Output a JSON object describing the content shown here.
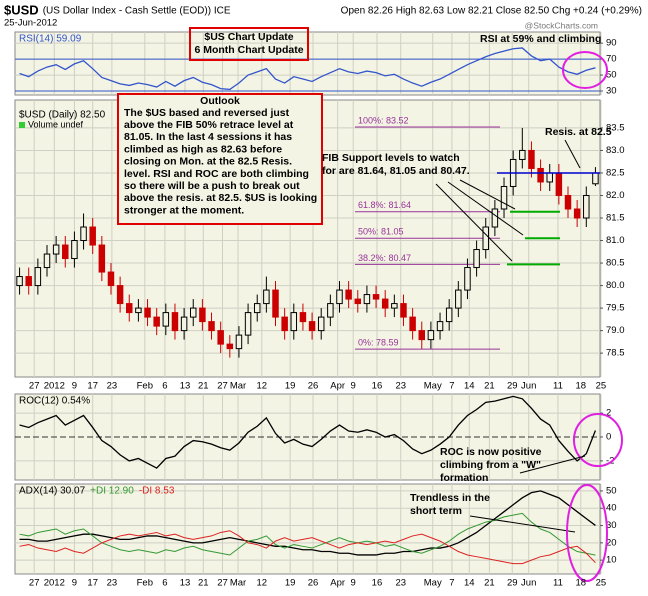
{
  "header": {
    "symbol": "$USD",
    "name": "(US Dollar Index - Cash Settle (EOD)) ICE",
    "date": "25-Jun-2012",
    "quote": "Open 82.26 High 82.63 Low 82.21 Close 82.50 Chg +0.24 (+0.29%)",
    "source": "@StockCharts.com"
  },
  "annotations": {
    "chart_update": [
      "$US Chart Update",
      "6 Month Chart Update"
    ],
    "outlook_title": "Outlook",
    "outlook": [
      "The $US based and reversed just",
      "above the FIB 50% retrace level at",
      "81.05. In the last 4 sessions it has",
      "climbed as high as 82.63 before",
      "closing on Mon. at the 82.5 Resis.",
      "level. RSI and ROC are both climbing",
      "so there will be a push to break out",
      "above the resis. at 82.5. $US is looking",
      "stronger at the moment."
    ],
    "rsi_note": "RSI at 59% and climbing",
    "resis_note": "Resis. at 82.5",
    "fib_note": [
      "FIB Support levels to watch",
      "for are 81.64, 81.05 and 80.47."
    ],
    "roc_note": [
      "ROC is now positive",
      "climbing from a \"W\"",
      "formation"
    ],
    "adx_note": [
      "Trendless in the",
      "short term"
    ]
  },
  "chart_data": [
    {
      "type": "line",
      "xlim": [
        -0.5,
        63.5
      ],
      "ylim": [
        25,
        104
      ],
      "yticks": [
        90,
        70,
        50,
        30
      ],
      "bands": [
        70,
        30
      ],
      "band_color": "#3355cc",
      "series": [
        {
          "name": "RSI(14) 59.09",
          "color": "#3355cc",
          "values": [
            52,
            48,
            55,
            60,
            63,
            57,
            64,
            68,
            58,
            47,
            43,
            39,
            37,
            40,
            38,
            35,
            42,
            36,
            43,
            47,
            41,
            38,
            33,
            32,
            40,
            50,
            54,
            58,
            45,
            40,
            48,
            45,
            42,
            48,
            53,
            58,
            54,
            52,
            55,
            53,
            49,
            51,
            45,
            40,
            36,
            41,
            45,
            51,
            57,
            63,
            68,
            73,
            77,
            80,
            83,
            84,
            74,
            68,
            70,
            60,
            54,
            51,
            56,
            59.09
          ]
        }
      ]
    },
    {
      "type": "candlestick",
      "xlim": [
        -0.5,
        63.5
      ],
      "ylim": [
        77.97,
        84.12
      ],
      "series_name": "$USD (Daily) 82.50",
      "subtitle": "Volume undef",
      "up_color": "#000000",
      "down_color": "#cc0000",
      "open": [
        80.0,
        80.2,
        80.0,
        80.4,
        80.7,
        80.9,
        80.6,
        81.0,
        81.3,
        80.9,
        80.3,
        80.0,
        79.6,
        79.4,
        79.5,
        79.3,
        79.1,
        79.4,
        79.0,
        79.3,
        79.5,
        79.2,
        79.0,
        78.7,
        78.6,
        78.9,
        79.4,
        79.6,
        79.9,
        79.3,
        79.0,
        79.4,
        79.2,
        79.0,
        79.3,
        79.6,
        79.9,
        79.7,
        79.6,
        79.8,
        79.7,
        79.5,
        79.6,
        79.3,
        79.0,
        78.8,
        79.0,
        79.2,
        79.5,
        79.9,
        80.4,
        80.8,
        81.3,
        81.7,
        82.2,
        82.8,
        83.0,
        82.6,
        82.3,
        82.5,
        82.0,
        81.7,
        81.5,
        82.26
      ],
      "high": [
        80.4,
        80.4,
        80.6,
        80.9,
        81.1,
        81.1,
        81.2,
        81.6,
        81.5,
        81.1,
        80.5,
        80.2,
        79.8,
        79.7,
        79.7,
        79.5,
        79.6,
        79.6,
        79.5,
        79.7,
        79.7,
        79.4,
        79.2,
        78.9,
        79.1,
        79.6,
        79.8,
        80.2,
        80.1,
        79.5,
        79.6,
        79.6,
        79.4,
        79.5,
        79.8,
        80.1,
        80.1,
        79.9,
        80.0,
        80.0,
        79.9,
        79.8,
        79.8,
        79.5,
        79.2,
        79.2,
        79.4,
        79.7,
        80.1,
        80.6,
        81.0,
        81.5,
        81.9,
        82.4,
        83.0,
        83.5,
        83.2,
        82.8,
        82.7,
        82.7,
        82.2,
        81.9,
        82.2,
        82.63
      ],
      "low": [
        79.8,
        79.8,
        79.8,
        80.2,
        80.5,
        80.4,
        80.4,
        80.8,
        80.7,
        80.1,
        79.8,
        79.4,
        79.2,
        79.2,
        79.1,
        78.9,
        78.9,
        78.8,
        78.8,
        79.1,
        79.0,
        78.8,
        78.5,
        78.4,
        78.4,
        78.7,
        79.2,
        79.4,
        79.1,
        78.8,
        78.8,
        79.0,
        78.8,
        78.8,
        79.1,
        79.4,
        79.5,
        79.4,
        79.4,
        79.5,
        79.3,
        79.3,
        79.1,
        78.8,
        78.6,
        78.6,
        78.8,
        79.0,
        79.3,
        79.7,
        80.2,
        80.6,
        81.1,
        81.5,
        82.0,
        82.6,
        82.4,
        82.1,
        82.1,
        81.8,
        81.5,
        81.3,
        81.3,
        82.21
      ],
      "close": [
        80.2,
        80.0,
        80.4,
        80.7,
        80.9,
        80.6,
        81.0,
        81.3,
        80.9,
        80.3,
        80.0,
        79.6,
        79.4,
        79.5,
        79.3,
        79.1,
        79.4,
        79.0,
        79.3,
        79.5,
        79.2,
        79.0,
        78.7,
        78.6,
        78.9,
        79.4,
        79.6,
        79.9,
        79.3,
        79.0,
        79.4,
        79.2,
        79.0,
        79.3,
        79.6,
        79.9,
        79.7,
        79.6,
        79.8,
        79.7,
        79.5,
        79.6,
        79.3,
        79.0,
        78.8,
        79.0,
        79.2,
        79.5,
        79.9,
        80.4,
        80.8,
        81.3,
        81.7,
        82.2,
        82.8,
        83.0,
        82.6,
        82.3,
        82.5,
        82.0,
        81.7,
        81.5,
        82.0,
        82.5
      ],
      "yticks": [
        78.5,
        {
          "value": 79,
          "label": "79.0"
        },
        79.5,
        {
          "value": 80,
          "label": "80.0"
        },
        80.5,
        {
          "value": 81,
          "label": "81.0"
        },
        81.5,
        {
          "value": 82,
          "label": "82.0"
        },
        82.5,
        {
          "value": 83,
          "label": "83.0"
        },
        83.5
      ],
      "xticks": [
        {
          "value": 1.6,
          "label": "27"
        },
        {
          "value": 3.8,
          "label": "2012"
        },
        {
          "value": 6.0,
          "label": "9"
        },
        {
          "value": 8.0,
          "label": "17"
        },
        {
          "value": 10.1,
          "label": "23"
        },
        {
          "value": 13.7,
          "label": "Feb"
        },
        {
          "value": 15.9,
          "label": "6"
        },
        {
          "value": 18.1,
          "label": "13"
        },
        {
          "value": 20.1,
          "label": "21"
        },
        {
          "value": 22.2,
          "label": "27"
        },
        {
          "value": 23.9,
          "label": "Mar"
        },
        {
          "value": 26.5,
          "label": "12"
        },
        {
          "value": 29.6,
          "label": "19"
        },
        {
          "value": 32.1,
          "label": "26"
        },
        {
          "value": 34.8,
          "label": "Apr"
        },
        {
          "value": 36.5,
          "label": "9"
        },
        {
          "value": 39.1,
          "label": "16"
        },
        {
          "value": 41.7,
          "label": "23"
        },
        {
          "value": 45.2,
          "label": "May"
        },
        {
          "value": 47.3,
          "label": "7"
        },
        {
          "value": 49.2,
          "label": "14"
        },
        {
          "value": 51.4,
          "label": "21"
        },
        {
          "value": 53.9,
          "label": "29"
        },
        {
          "value": 55.7,
          "label": "Jun"
        },
        {
          "value": 58.9,
          "label": "11"
        },
        {
          "value": 61.4,
          "label": "18"
        },
        {
          "value": 63.6,
          "label": "25"
        }
      ],
      "fib_levels": [
        {
          "value": 83.52,
          "label": "100%: 83.52"
        },
        {
          "value": 81.64,
          "label": "61.8%: 81.64"
        },
        {
          "value": 81.05,
          "label": "50%: 81.05"
        },
        {
          "value": 80.47,
          "label": "38.2%: 80.47"
        },
        {
          "value": 78.59,
          "label": "0%: 78.59"
        }
      ],
      "fib_color": "#993399",
      "resistance": 82.5,
      "resistance_color": "#0000cc",
      "supports": [
        81.64,
        81.05,
        80.47
      ],
      "support_color": "#00aa00"
    },
    {
      "type": "line",
      "xlim": [
        -0.5,
        63.5
      ],
      "ylim": [
        -3.6,
        3.6
      ],
      "yticks": [
        2,
        0,
        -2
      ],
      "series": [
        {
          "name": "ROC(12) 0.54%",
          "color": "#000000",
          "values": [
            1.0,
            0.8,
            1.2,
            1.5,
            1.8,
            1.0,
            1.4,
            1.8,
            0.8,
            -0.3,
            -0.8,
            -1.5,
            -2.0,
            -1.8,
            -2.2,
            -2.6,
            -1.8,
            -1.6,
            -0.8,
            -0.3,
            -0.4,
            -0.6,
            -0.9,
            -1.1,
            -0.5,
            0.4,
            0.9,
            1.6,
            0.3,
            -0.5,
            -0.2,
            -0.6,
            -0.8,
            -0.2,
            0.5,
            1.0,
            0.5,
            0.4,
            0.6,
            0.4,
            0.0,
            0.2,
            -0.3,
            -1.0,
            -1.4,
            -1.1,
            -0.6,
            0.0,
            1.0,
            1.8,
            2.3,
            2.9,
            3.0,
            3.2,
            3.4,
            3.2,
            2.4,
            1.5,
            1.0,
            -0.3,
            -1.2,
            -2.0,
            -1.4,
            0.54
          ]
        }
      ]
    },
    {
      "type": "line",
      "xlim": [
        -0.5,
        63.5
      ],
      "ylim": [
        2,
        54
      ],
      "yticks": [
        50,
        40,
        30,
        20,
        10
      ],
      "xticks": [
        {
          "value": 1.6,
          "label": "27"
        },
        {
          "value": 3.8,
          "label": "2012"
        },
        {
          "value": 6.0,
          "label": "9"
        },
        {
          "value": 8.0,
          "label": "17"
        },
        {
          "value": 10.1,
          "label": "23"
        },
        {
          "value": 13.7,
          "label": "Feb"
        },
        {
          "value": 15.9,
          "label": "6"
        },
        {
          "value": 18.1,
          "label": "13"
        },
        {
          "value": 20.1,
          "label": "21"
        },
        {
          "value": 22.2,
          "label": "27"
        },
        {
          "value": 23.9,
          "label": "Mar"
        },
        {
          "value": 26.5,
          "label": "12"
        },
        {
          "value": 29.6,
          "label": "19"
        },
        {
          "value": 32.1,
          "label": "26"
        },
        {
          "value": 34.8,
          "label": "Apr"
        },
        {
          "value": 36.5,
          "label": "9"
        },
        {
          "value": 39.1,
          "label": "16"
        },
        {
          "value": 41.7,
          "label": "23"
        },
        {
          "value": 45.2,
          "label": "May"
        },
        {
          "value": 47.3,
          "label": "7"
        },
        {
          "value": 49.2,
          "label": "14"
        },
        {
          "value": 51.4,
          "label": "21"
        },
        {
          "value": 53.9,
          "label": "29"
        },
        {
          "value": 55.7,
          "label": "Jun"
        },
        {
          "value": 58.9,
          "label": "11"
        },
        {
          "value": 61.4,
          "label": "18"
        },
        {
          "value": 63.6,
          "label": "25"
        }
      ],
      "series": [
        {
          "name": "ADX(14) 30.07",
          "color": "#000000",
          "values": [
            22,
            22,
            21,
            21,
            22,
            23,
            24,
            25,
            25,
            24,
            23,
            22,
            22,
            23,
            24,
            24,
            23,
            22,
            21,
            20,
            20,
            21,
            22,
            23,
            22,
            21,
            20,
            19,
            18,
            18,
            17,
            16,
            16,
            15,
            15,
            14,
            14,
            13,
            13,
            13,
            14,
            14,
            15,
            15,
            16,
            17,
            17,
            18,
            20,
            23,
            26,
            30,
            34,
            38,
            42,
            46,
            49,
            50,
            48,
            46,
            42,
            38,
            34,
            30.07
          ]
        },
        {
          "name": "+DI 12.90",
          "color": "#339933",
          "values": [
            25,
            24,
            26,
            27,
            28,
            25,
            27,
            28,
            24,
            20,
            18,
            16,
            15,
            16,
            15,
            14,
            16,
            15,
            17,
            18,
            16,
            15,
            14,
            13,
            17,
            21,
            22,
            24,
            19,
            17,
            19,
            18,
            17,
            19,
            21,
            23,
            21,
            20,
            21,
            20,
            18,
            19,
            17,
            15,
            14,
            16,
            18,
            21,
            25,
            28,
            30,
            32,
            33,
            35,
            36,
            37,
            32,
            28,
            26,
            22,
            18,
            15,
            14,
            12.9
          ]
        },
        {
          "name": "-DI 8.53",
          "color": "#dd2222",
          "values": [
            18,
            19,
            17,
            16,
            15,
            17,
            15,
            14,
            17,
            20,
            22,
            24,
            25,
            24,
            25,
            26,
            24,
            25,
            23,
            22,
            23,
            24,
            26,
            27,
            24,
            20,
            19,
            17,
            21,
            23,
            21,
            22,
            23,
            21,
            19,
            17,
            19,
            20,
            19,
            20,
            21,
            20,
            22,
            24,
            25,
            23,
            21,
            18,
            15,
            13,
            12,
            11,
            10,
            9,
            8,
            8,
            10,
            12,
            13,
            15,
            17,
            18,
            14,
            8.53
          ]
        }
      ]
    }
  ]
}
